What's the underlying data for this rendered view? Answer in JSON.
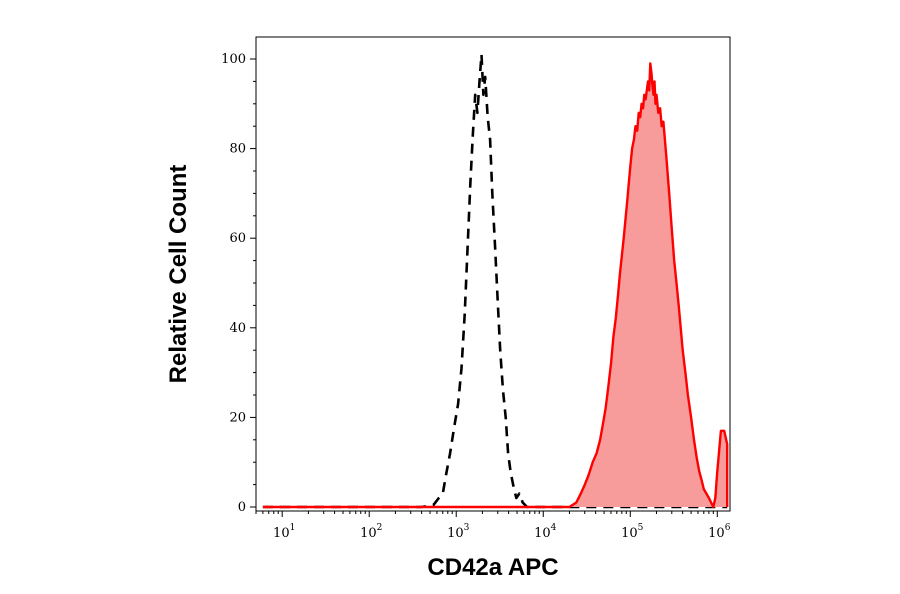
{
  "chart_data": {
    "type": "area",
    "xlabel": "CD42a APC",
    "ylabel": "Relative Cell Count",
    "x_scale": "log",
    "xlim": [
      5,
      1400000
    ],
    "ylim": [
      0,
      104
    ],
    "x_ticks": [
      {
        "base": "10",
        "exp": "1",
        "value": 10
      },
      {
        "base": "10",
        "exp": "2",
        "value": 100
      },
      {
        "base": "10",
        "exp": "3",
        "value": 1000
      },
      {
        "base": "10",
        "exp": "4",
        "value": 10000
      },
      {
        "base": "10",
        "exp": "5",
        "value": 100000
      },
      {
        "base": "10",
        "exp": "6",
        "value": 1000000
      }
    ],
    "y_ticks": [
      {
        "label": "0",
        "value": 0
      },
      {
        "label": "20",
        "value": 20
      },
      {
        "label": "40",
        "value": 40
      },
      {
        "label": "60",
        "value": 60
      },
      {
        "label": "80",
        "value": 80
      },
      {
        "label": "100",
        "value": 100
      }
    ],
    "grid": false,
    "series": [
      {
        "style": "dashed",
        "color": "#000000",
        "points": [
          [
            6,
            0
          ],
          [
            400,
            0
          ],
          [
            550,
            0.5
          ],
          [
            630,
            2
          ],
          [
            700,
            3
          ],
          [
            760,
            7
          ],
          [
            850,
            12
          ],
          [
            950,
            18
          ],
          [
            1050,
            23
          ],
          [
            1150,
            31
          ],
          [
            1250,
            43
          ],
          [
            1350,
            58
          ],
          [
            1450,
            72
          ],
          [
            1550,
            83
          ],
          [
            1650,
            92
          ],
          [
            1750,
            88
          ],
          [
            1850,
            95
          ],
          [
            1950,
            101
          ],
          [
            2050,
            92
          ],
          [
            2150,
            96
          ],
          [
            2300,
            87
          ],
          [
            2450,
            82
          ],
          [
            2600,
            70
          ],
          [
            2800,
            58
          ],
          [
            3000,
            46
          ],
          [
            3200,
            35
          ],
          [
            3450,
            26
          ],
          [
            3700,
            20
          ],
          [
            3950,
            12
          ],
          [
            4200,
            8
          ],
          [
            4500,
            5
          ],
          [
            4900,
            2
          ],
          [
            5300,
            3
          ],
          [
            5800,
            1
          ],
          [
            6500,
            0
          ],
          [
            1300000,
            0
          ]
        ]
      },
      {
        "style": "filled",
        "color": "#ff0000",
        "fill": "#f89b9b",
        "points": [
          [
            6,
            0
          ],
          [
            20000,
            0
          ],
          [
            24000,
            1
          ],
          [
            27000,
            3
          ],
          [
            30000,
            5
          ],
          [
            33000,
            7
          ],
          [
            37000,
            10
          ],
          [
            41000,
            12
          ],
          [
            45000,
            15
          ],
          [
            48000,
            18
          ],
          [
            52000,
            22
          ],
          [
            56000,
            27
          ],
          [
            60000,
            32
          ],
          [
            64000,
            38
          ],
          [
            68000,
            42
          ],
          [
            72000,
            47
          ],
          [
            76000,
            52
          ],
          [
            80000,
            56
          ],
          [
            84000,
            60
          ],
          [
            88000,
            64
          ],
          [
            92000,
            68
          ],
          [
            96000,
            72
          ],
          [
            100000,
            76
          ],
          [
            105000,
            80
          ],
          [
            110000,
            82
          ],
          [
            115000,
            85
          ],
          [
            120000,
            84
          ],
          [
            125000,
            88
          ],
          [
            130000,
            87
          ],
          [
            135000,
            90
          ],
          [
            140000,
            89
          ],
          [
            145000,
            92
          ],
          [
            150000,
            91
          ],
          [
            155000,
            93
          ],
          [
            160000,
            95
          ],
          [
            165000,
            93
          ],
          [
            170000,
            99
          ],
          [
            175000,
            97
          ],
          [
            180000,
            94
          ],
          [
            185000,
            92
          ],
          [
            190000,
            95
          ],
          [
            195000,
            90
          ],
          [
            200000,
            92
          ],
          [
            210000,
            88
          ],
          [
            220000,
            89
          ],
          [
            230000,
            85
          ],
          [
            240000,
            86
          ],
          [
            250000,
            82
          ],
          [
            260000,
            78
          ],
          [
            270000,
            74
          ],
          [
            280000,
            70
          ],
          [
            290000,
            66
          ],
          [
            300000,
            62
          ],
          [
            320000,
            55
          ],
          [
            340000,
            50
          ],
          [
            360000,
            45
          ],
          [
            380000,
            40
          ],
          [
            400000,
            35
          ],
          [
            430000,
            30
          ],
          [
            460000,
            25
          ],
          [
            500000,
            20
          ],
          [
            540000,
            15
          ],
          [
            580000,
            11
          ],
          [
            620000,
            8
          ],
          [
            660000,
            6
          ],
          [
            700000,
            4
          ],
          [
            750000,
            3
          ],
          [
            800000,
            2
          ],
          [
            850000,
            1
          ],
          [
            900000,
            0
          ],
          [
            950000,
            2
          ],
          [
            1000000,
            8
          ],
          [
            1100000,
            17
          ],
          [
            1200000,
            17
          ],
          [
            1300000,
            14
          ],
          [
            1300000,
            0
          ]
        ]
      }
    ]
  }
}
